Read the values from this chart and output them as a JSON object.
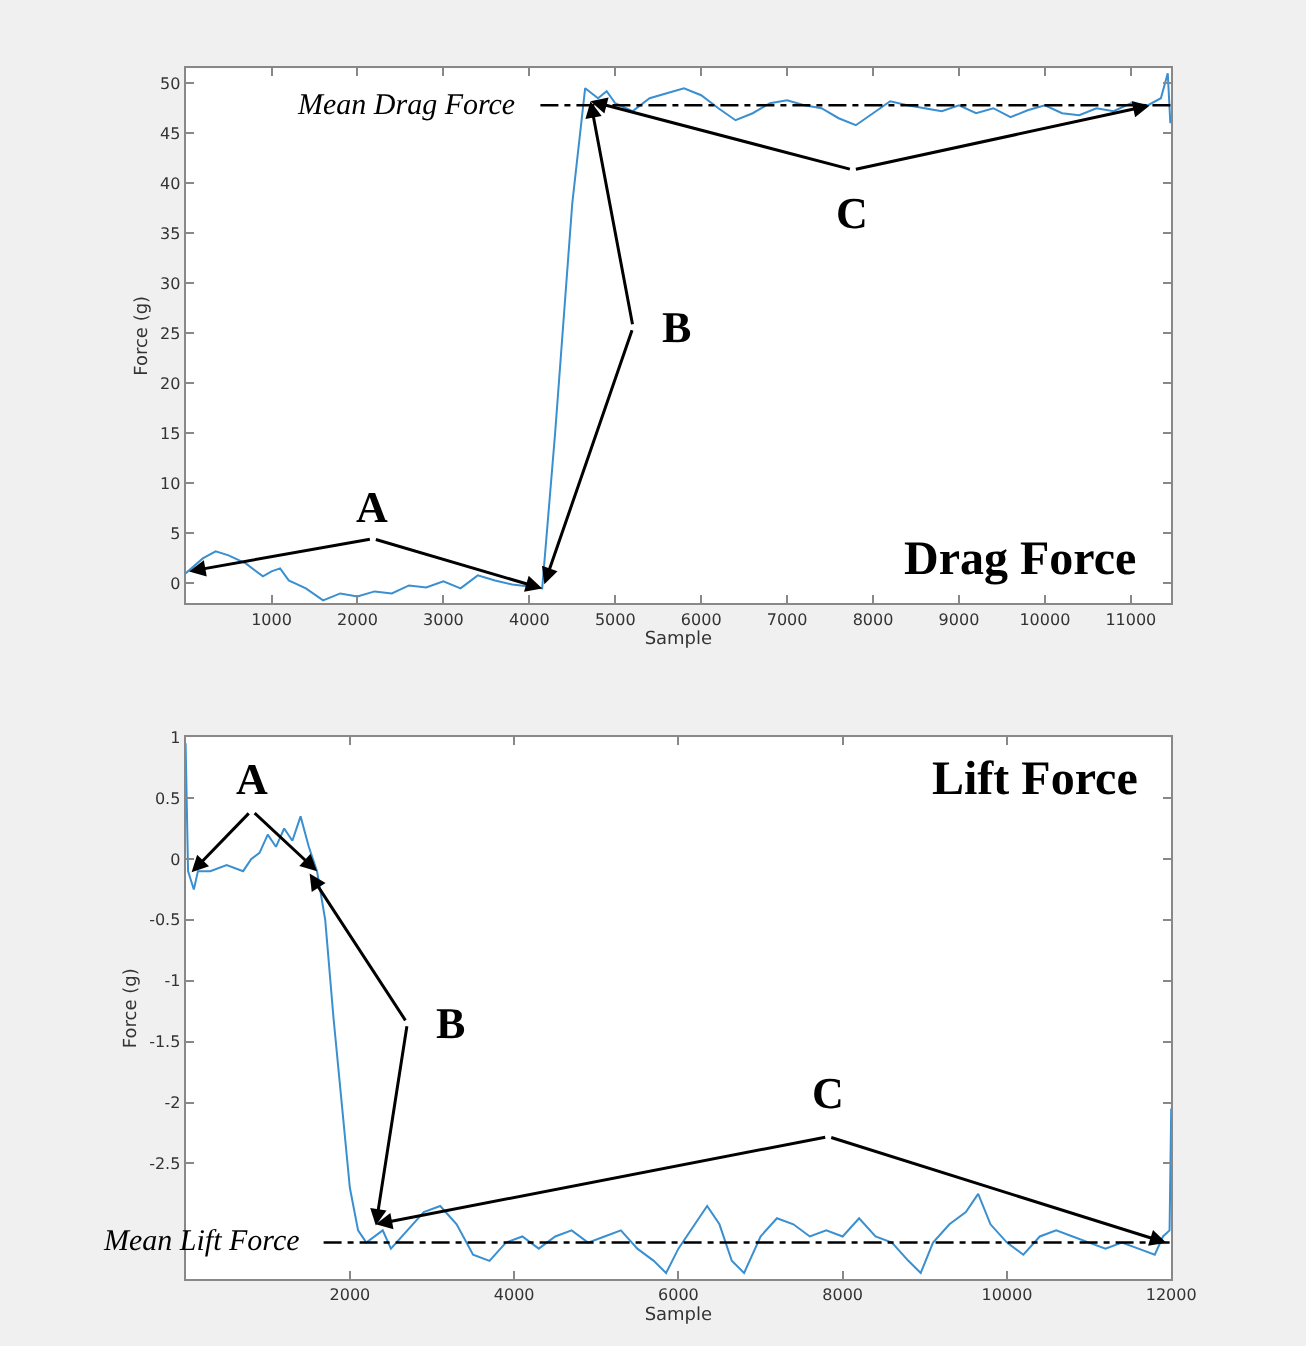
{
  "chart_data": [
    {
      "type": "line",
      "title": "Drag Force",
      "xlabel": "Sample",
      "ylabel": "Force (g)",
      "xlim": [
        0,
        11470
      ],
      "ylim": [
        -2,
        51.5
      ],
      "xticks": [
        1000,
        2000,
        3000,
        4000,
        5000,
        6000,
        7000,
        8000,
        9000,
        10000,
        11000
      ],
      "yticks": [
        0,
        5,
        10,
        15,
        20,
        25,
        30,
        35,
        40,
        45,
        50
      ],
      "marker": "none",
      "line_style": "solid",
      "ref_lines": [
        {
          "axis": "y",
          "value": 47.8,
          "label": "Mean Drag Force",
          "color": "#000000",
          "line_style": "dashdot"
        }
      ],
      "annotations": [
        {
          "text": "A",
          "x": 40,
          "y": 1.2
        },
        {
          "text": "B",
          "x": 4712,
          "y": 48.2
        },
        {
          "text": "C",
          "x": 4712,
          "y": 48.2
        }
      ],
      "series": [
        {
          "color": "#3a8fd0",
          "x": [
            0,
            200,
            350,
            500,
            700,
            900,
            1000,
            1100,
            1200,
            1400,
            1600,
            1800,
            2000,
            2200,
            2400,
            2600,
            2800,
            3000,
            3200,
            3400,
            3600,
            3800,
            4000,
            4150,
            4300,
            4500,
            4650,
            4800,
            4900,
            5000,
            5200,
            5400,
            5600,
            5800,
            6000,
            6200,
            6400,
            6600,
            6800,
            7000,
            7200,
            7400,
            7600,
            7800,
            8000,
            8200,
            8400,
            8600,
            8800,
            9000,
            9200,
            9400,
            9600,
            9800,
            10000,
            10200,
            10400,
            10600,
            10800,
            11000,
            11200,
            11350,
            11430,
            11460
          ],
          "values": [
            1.0,
            2.5,
            3.2,
            2.8,
            2.0,
            0.7,
            1.2,
            1.5,
            0.3,
            -0.5,
            -1.7,
            -1.0,
            -1.3,
            -0.8,
            -1.0,
            -0.2,
            -0.4,
            0.2,
            -0.5,
            0.8,
            0.3,
            -0.1,
            -0.3,
            -0.5,
            15,
            38,
            49.5,
            48.5,
            49.2,
            48.0,
            47.2,
            48.5,
            49.0,
            49.5,
            48.8,
            47.5,
            46.3,
            47.0,
            48.0,
            48.3,
            47.8,
            47.5,
            46.5,
            45.8,
            47.0,
            48.2,
            47.8,
            47.5,
            47.2,
            47.8,
            47.0,
            47.5,
            46.6,
            47.3,
            47.8,
            47.0,
            46.8,
            47.5,
            47.2,
            48.0,
            47.8,
            48.5,
            51.0,
            46.0
          ]
        }
      ]
    },
    {
      "type": "line",
      "title": "Lift Force",
      "xlabel": "Sample",
      "ylabel": "Force (g)",
      "xlim": [
        0,
        12000
      ],
      "ylim": [
        -3.45,
        1
      ],
      "xticks": [
        2000,
        4000,
        6000,
        8000,
        10000,
        12000
      ],
      "yticks": [
        -2.5,
        -2,
        -1.5,
        -1,
        -0.5,
        0,
        0.5,
        1
      ],
      "marker": "none",
      "line_style": "solid",
      "ref_lines": [
        {
          "axis": "y",
          "value": -3.15,
          "label": "Mean Lift Force",
          "color": "#000000",
          "line_style": "dashdot"
        }
      ],
      "annotations": [
        {
          "text": "A",
          "x": 73,
          "y": -0.11
        },
        {
          "text": "B",
          "x": 1510,
          "y": -0.12
        },
        {
          "text": "C",
          "x": 2315,
          "y": -3.0
        }
      ],
      "series": [
        {
          "color": "#3a8fd0",
          "x": [
            0,
            30,
            100,
            150,
            300,
            500,
            700,
            800,
            900,
            1000,
            1100,
            1200,
            1300,
            1400,
            1500,
            1600,
            1700,
            1800,
            1900,
            2000,
            2100,
            2200,
            2400,
            2500,
            2700,
            2900,
            3100,
            3300,
            3500,
            3700,
            3900,
            4100,
            4300,
            4500,
            4700,
            4900,
            5100,
            5300,
            5500,
            5700,
            5850,
            6000,
            6200,
            6350,
            6500,
            6650,
            6800,
            7000,
            7200,
            7400,
            7600,
            7800,
            8000,
            8200,
            8400,
            8600,
            8800,
            8950,
            9100,
            9300,
            9500,
            9650,
            9800,
            10000,
            10200,
            10400,
            10600,
            10800,
            11000,
            11200,
            11400,
            11600,
            11800,
            11900,
            11980,
            12000
          ],
          "values": [
            0.95,
            -0.1,
            -0.25,
            -0.1,
            -0.1,
            -0.05,
            -0.1,
            0.0,
            0.05,
            0.2,
            0.1,
            0.25,
            0.15,
            0.35,
            0.1,
            -0.1,
            -0.5,
            -1.3,
            -2.0,
            -2.7,
            -3.05,
            -3.15,
            -3.05,
            -3.2,
            -3.05,
            -2.9,
            -2.85,
            -3.0,
            -3.25,
            -3.3,
            -3.15,
            -3.1,
            -3.2,
            -3.1,
            -3.05,
            -3.15,
            -3.1,
            -3.05,
            -3.2,
            -3.3,
            -3.4,
            -3.2,
            -3.0,
            -2.85,
            -3.0,
            -3.3,
            -3.4,
            -3.1,
            -2.95,
            -3.0,
            -3.1,
            -3.05,
            -3.1,
            -2.95,
            -3.1,
            -3.15,
            -3.3,
            -3.4,
            -3.15,
            -3.0,
            -2.9,
            -2.75,
            -3.0,
            -3.15,
            -3.25,
            -3.1,
            -3.05,
            -3.1,
            -3.15,
            -3.2,
            -3.15,
            -3.2,
            -3.25,
            -3.1,
            -3.05,
            -2.05
          ]
        }
      ]
    }
  ]
}
